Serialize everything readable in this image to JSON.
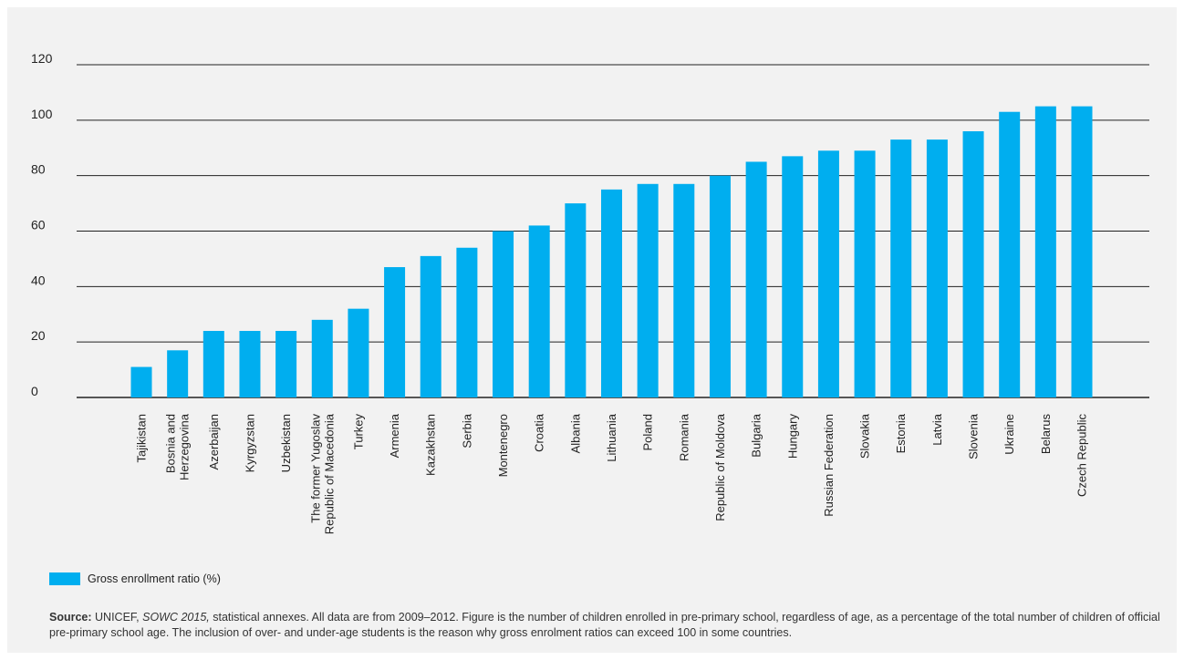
{
  "chart_data": {
    "type": "bar",
    "categories": [
      "Tajikistan",
      "Bosnia and Herzegovina",
      "Azerbaijan",
      "Kyrgyzstan",
      "Uzbekistan",
      "The former Yugoslav Republic of Macedonia",
      "Turkey",
      "Armenia",
      "Kazakhstan",
      "Serbia",
      "Montenegro",
      "Croatia",
      "Albania",
      "Lithuania",
      "Poland",
      "Romania",
      "Republic of Moldova",
      "Bulgaria",
      "Hungary",
      "Russian Federation",
      "Slovakia",
      "Estonia",
      "Latvia",
      "Slovenia",
      "Ukraine",
      "Belarus",
      "Czech Republic"
    ],
    "category_lines": [
      [
        "Tajikistan"
      ],
      [
        "Bosnia and",
        "Herzegovina"
      ],
      [
        "Azerbaijan"
      ],
      [
        "Kyrgyzstan"
      ],
      [
        "Uzbekistan"
      ],
      [
        "The former Yugoslav",
        "Republic of Macedonia"
      ],
      [
        "Turkey"
      ],
      [
        "Armenia"
      ],
      [
        "Kazakhstan"
      ],
      [
        "Serbia"
      ],
      [
        "Montenegro"
      ],
      [
        "Croatia"
      ],
      [
        "Albania"
      ],
      [
        "Lithuania"
      ],
      [
        "Poland"
      ],
      [
        "Romania"
      ],
      [
        "Republic of Moldova"
      ],
      [
        "Bulgaria"
      ],
      [
        "Hungary"
      ],
      [
        "Russian Federation"
      ],
      [
        "Slovakia"
      ],
      [
        "Estonia"
      ],
      [
        "Latvia"
      ],
      [
        "Slovenia"
      ],
      [
        "Ukraine"
      ],
      [
        "Belarus"
      ],
      [
        "Czech Republic"
      ]
    ],
    "series": [
      {
        "name": "Gross enrollment ratio (%)",
        "values": [
          11,
          17,
          24,
          24,
          24,
          28,
          32,
          47,
          51,
          54,
          60,
          62,
          70,
          75,
          77,
          77,
          80,
          85,
          87,
          89,
          89,
          93,
          93,
          96,
          103,
          105,
          105
        ]
      }
    ],
    "ylim": [
      0,
      120
    ],
    "yticks": [
      0,
      20,
      40,
      60,
      80,
      100,
      120
    ],
    "xlabel": "",
    "ylabel": "",
    "grid": true,
    "legend": "bottom-left",
    "bar_color": "#00aeef"
  },
  "legend": {
    "label": "Gross enrollment ratio (%)"
  },
  "source": {
    "label": "Source:",
    "text_before": " UNICEF, ",
    "italic": "SOWC 2015,",
    "text_after": " statistical annexes. All data are from 2009–2012. Figure is the number of children enrolled in pre-primary school, regardless of age, as a percentage of the total number of children of official pre-primary school age. The inclusion of over- and under-age students is the reason why gross enrolment ratios can exceed 100 in some countries."
  }
}
